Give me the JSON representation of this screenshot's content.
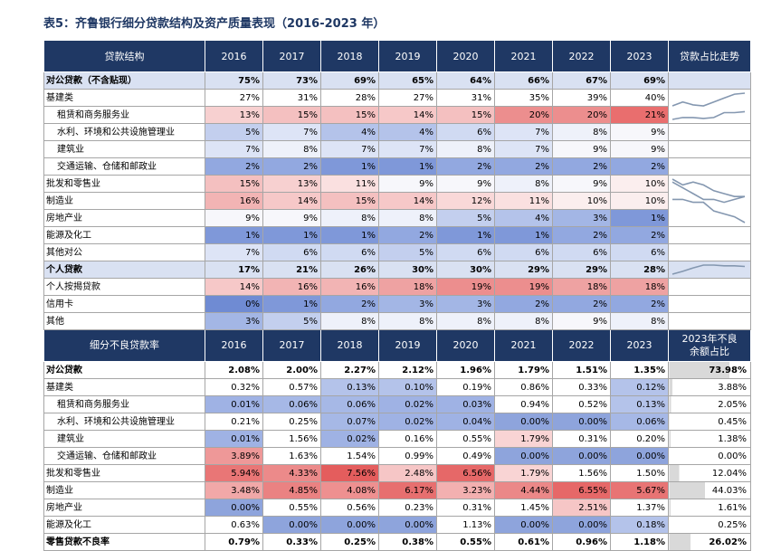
{
  "caption": "表5：齐鲁银行细分贷款结构及资产质量表现（2016-2023 年）",
  "section1": {
    "header_label": "贷款结构",
    "years": [
      "2016",
      "2017",
      "2018",
      "2019",
      "2020",
      "2021",
      "2022",
      "2023"
    ],
    "trend_label": "贷款占比走势",
    "rows": [
      {
        "label": "对公贷款（不含贴现）",
        "indent": false,
        "bold": true,
        "band": true,
        "values": [
          "75%",
          "73%",
          "69%",
          "65%",
          "64%",
          "66%",
          "67%",
          "69%"
        ],
        "colors": [
          null,
          null,
          null,
          null,
          null,
          null,
          null,
          null
        ]
      },
      {
        "label": "基建类",
        "indent": false,
        "bold": false,
        "values": [
          "27%",
          "31%",
          "28%",
          "27%",
          "31%",
          "35%",
          "39%",
          "40%"
        ],
        "colors": [
          null,
          null,
          null,
          null,
          null,
          null,
          null,
          null
        ]
      },
      {
        "label": "租赁和商务服务业",
        "indent": true,
        "bold": false,
        "values": [
          "13%",
          "15%",
          "15%",
          "14%",
          "15%",
          "20%",
          "20%",
          "21%"
        ],
        "colors": [
          "#f7d0d0",
          "#f4c0c0",
          "#f4c0c0",
          "#f6c8c8",
          "#f4c0c0",
          "#ec8e8e",
          "#ec8e8e",
          "#e96e6e"
        ]
      },
      {
        "label": "水利、环境和公共设施管理业",
        "indent": true,
        "bold": false,
        "values": [
          "5%",
          "7%",
          "4%",
          "4%",
          "6%",
          "7%",
          "8%",
          "9%"
        ],
        "colors": [
          "#c3cfee",
          "#dde4f6",
          "#b4c3ea",
          "#b4c3ea",
          "#d0daf2",
          "#dde4f6",
          "#eef1fa",
          "#f7f7fb"
        ]
      },
      {
        "label": "建筑业",
        "indent": true,
        "bold": false,
        "values": [
          "7%",
          "8%",
          "7%",
          "7%",
          "8%",
          "7%",
          "9%",
          "9%"
        ],
        "colors": [
          "#dde4f6",
          "#eef1fa",
          "#dde4f6",
          "#dde4f6",
          "#eef1fa",
          "#dde4f6",
          "#f7f7fb",
          "#f7f7fb"
        ]
      },
      {
        "label": "交通运输、仓储和邮政业",
        "indent": true,
        "bold": false,
        "values": [
          "2%",
          "2%",
          "1%",
          "1%",
          "2%",
          "2%",
          "2%",
          "2%"
        ],
        "colors": [
          "#92a8e0",
          "#92a8e0",
          "#7f98d9",
          "#7f98d9",
          "#92a8e0",
          "#92a8e0",
          "#92a8e0",
          "#92a8e0"
        ]
      },
      {
        "label": "批发和零售业",
        "indent": false,
        "bold": false,
        "values": [
          "15%",
          "13%",
          "11%",
          "9%",
          "9%",
          "8%",
          "9%",
          "10%"
        ],
        "colors": [
          "#f4c0c0",
          "#f7d0d0",
          "#fae0e0",
          "#f7f7fb",
          "#f7f7fb",
          "#eef1fa",
          "#f7f7fb",
          "#fbeeee"
        ]
      },
      {
        "label": "制造业",
        "indent": false,
        "bold": false,
        "values": [
          "16%",
          "14%",
          "15%",
          "14%",
          "12%",
          "11%",
          "10%",
          "10%"
        ],
        "colors": [
          "#f2b4b4",
          "#f6c8c8",
          "#f4c0c0",
          "#f6c8c8",
          "#f9d8d8",
          "#fae0e0",
          "#fbeeee",
          "#fbeeee"
        ]
      },
      {
        "label": "房地产业",
        "indent": false,
        "bold": false,
        "values": [
          "9%",
          "9%",
          "8%",
          "8%",
          "5%",
          "4%",
          "3%",
          "1%"
        ],
        "colors": [
          "#f7f7fb",
          "#f7f7fb",
          "#eef1fa",
          "#eef1fa",
          "#c3cfee",
          "#b4c3ea",
          "#a3b6e5",
          "#7f98d9"
        ]
      },
      {
        "label": "能源及化工",
        "indent": false,
        "bold": false,
        "values": [
          "1%",
          "1%",
          "1%",
          "2%",
          "1%",
          "1%",
          "2%",
          "2%"
        ],
        "colors": [
          "#7f98d9",
          "#7f98d9",
          "#7f98d9",
          "#92a8e0",
          "#7f98d9",
          "#7f98d9",
          "#92a8e0",
          "#92a8e0"
        ]
      },
      {
        "label": "其他对公",
        "indent": false,
        "bold": false,
        "values": [
          "7%",
          "6%",
          "6%",
          "5%",
          "6%",
          "6%",
          "6%",
          "6%"
        ],
        "colors": [
          "#dde4f6",
          "#d0daf2",
          "#d0daf2",
          "#c3cfee",
          "#d0daf2",
          "#d0daf2",
          "#d0daf2",
          "#d0daf2"
        ]
      },
      {
        "label": "个人贷款",
        "indent": false,
        "bold": true,
        "band": true,
        "values": [
          "17%",
          "21%",
          "26%",
          "30%",
          "30%",
          "29%",
          "29%",
          "28%"
        ],
        "colors": [
          null,
          null,
          null,
          null,
          null,
          null,
          null,
          null
        ]
      },
      {
        "label": "个人按揭贷款",
        "indent": false,
        "bold": false,
        "values": [
          "14%",
          "16%",
          "16%",
          "18%",
          "19%",
          "19%",
          "18%",
          "18%"
        ],
        "colors": [
          "#f6c8c8",
          "#f2b4b4",
          "#f2b4b4",
          "#eea2a2",
          "#ec8e8e",
          "#ec8e8e",
          "#eea2a2",
          "#eea2a2"
        ]
      },
      {
        "label": "信用卡",
        "indent": false,
        "bold": false,
        "values": [
          "0%",
          "1%",
          "2%",
          "3%",
          "3%",
          "2%",
          "2%",
          "2%"
        ],
        "colors": [
          "#6f8bd3",
          "#7f98d9",
          "#92a8e0",
          "#a3b6e5",
          "#a3b6e5",
          "#92a8e0",
          "#92a8e0",
          "#92a8e0"
        ]
      },
      {
        "label": "其他",
        "indent": false,
        "bold": false,
        "values": [
          "3%",
          "5%",
          "8%",
          "8%",
          "8%",
          "8%",
          "9%",
          "8%"
        ],
        "colors": [
          "#a3b6e5",
          "#c3cfee",
          "#eef1fa",
          "#eef1fa",
          "#eef1fa",
          "#eef1fa",
          "#f7f7fb",
          "#eef1fa"
        ]
      }
    ]
  },
  "section2": {
    "header_label": "细分不良贷款率",
    "years": [
      "2016",
      "2017",
      "2018",
      "2019",
      "2020",
      "2021",
      "2022",
      "2023"
    ],
    "share_label": "2023年不良余额占比",
    "share_label_line1": "2023年不良",
    "share_label_line2": "余额占比",
    "rows": [
      {
        "label": "对公贷款",
        "indent": false,
        "bold": true,
        "values": [
          "2.08%",
          "2.00%",
          "2.27%",
          "2.12%",
          "1.96%",
          "1.79%",
          "1.51%",
          "1.35%"
        ],
        "colors": [
          null,
          null,
          null,
          null,
          null,
          null,
          null,
          null
        ],
        "share": "73.98%",
        "share_fill": 0.74
      },
      {
        "label": "基建类",
        "indent": false,
        "bold": false,
        "values": [
          "0.32%",
          "0.57%",
          "0.13%",
          "0.10%",
          "0.19%",
          "0.86%",
          "0.33%",
          "0.12%"
        ],
        "colors": [
          null,
          null,
          "#b4c3ea",
          "#b4c3ea",
          null,
          null,
          null,
          "#b4c3ea"
        ],
        "share": "3.88%",
        "share_fill": 0.04
      },
      {
        "label": "租赁和商务服务业",
        "indent": true,
        "bold": false,
        "values": [
          "0.01%",
          "0.06%",
          "0.06%",
          "0.02%",
          "0.03%",
          "0.94%",
          "0.52%",
          "0.13%"
        ],
        "colors": [
          "#9fb2e4",
          "#a6b8e6",
          "#a6b8e6",
          "#9fb2e4",
          "#9fb2e4",
          null,
          null,
          "#b4c3ea"
        ],
        "share": "2.05%",
        "share_fill": 0.02
      },
      {
        "label": "水利、环境和公共设施管理业",
        "indent": true,
        "bold": false,
        "values": [
          "0.21%",
          "0.25%",
          "0.07%",
          "0.02%",
          "0.04%",
          "0.00%",
          "0.00%",
          "0.06%"
        ],
        "colors": [
          null,
          null,
          "#a6b8e6",
          "#9fb2e4",
          "#9fb2e4",
          "#8ea4dc",
          "#8ea4dc",
          "#a6b8e6"
        ],
        "share": "0.45%",
        "share_fill": 0.005
      },
      {
        "label": "建筑业",
        "indent": true,
        "bold": false,
        "values": [
          "0.01%",
          "1.56%",
          "0.02%",
          "0.16%",
          "0.55%",
          "1.79%",
          "0.31%",
          "0.20%"
        ],
        "colors": [
          "#9fb2e4",
          null,
          "#9fb2e4",
          null,
          null,
          "#f9d4d4",
          null,
          null
        ],
        "share": "1.38%",
        "share_fill": 0.014
      },
      {
        "label": "交通运输、仓储和邮政业",
        "indent": true,
        "bold": false,
        "values": [
          "3.89%",
          "1.63%",
          "1.54%",
          "0.99%",
          "0.49%",
          "0.00%",
          "0.00%",
          "0.00%"
        ],
        "colors": [
          "#ee9898",
          null,
          null,
          null,
          null,
          "#8ea4dc",
          "#8ea4dc",
          "#8ea4dc"
        ],
        "share": "0.00%",
        "share_fill": 0.0
      },
      {
        "label": "批发和零售业",
        "indent": false,
        "bold": false,
        "values": [
          "5.94%",
          "4.33%",
          "7.56%",
          "2.48%",
          "6.56%",
          "1.79%",
          "1.56%",
          "1.50%"
        ],
        "colors": [
          "#e97676",
          "#ec8a8a",
          "#e45d5d",
          "#f6c6c6",
          "#e66868",
          "#f9d4d4",
          null,
          null
        ],
        "share": "12.04%",
        "share_fill": 0.12
      },
      {
        "label": "制造业",
        "indent": false,
        "bold": false,
        "values": [
          "3.48%",
          "4.85%",
          "4.08%",
          "6.17%",
          "3.23%",
          "4.44%",
          "6.55%",
          "5.67%"
        ],
        "colors": [
          "#f1a8a8",
          "#ea8282",
          "#ee9090",
          "#e76f6f",
          "#f3b0b0",
          "#eb8888",
          "#e66868",
          "#e87474"
        ],
        "share": "44.03%",
        "share_fill": 0.44
      },
      {
        "label": "房地产业",
        "indent": false,
        "bold": false,
        "values": [
          "0.00%",
          "0.55%",
          "0.56%",
          "0.23%",
          "0.31%",
          "1.45%",
          "2.51%",
          "1.37%"
        ],
        "colors": [
          "#8ea4dc",
          null,
          null,
          null,
          null,
          null,
          "#f6c6c6",
          null
        ],
        "share": "1.61%",
        "share_fill": 0.016
      },
      {
        "label": "能源及化工",
        "indent": false,
        "bold": false,
        "values": [
          "0.63%",
          "0.00%",
          "0.00%",
          "0.00%",
          "1.13%",
          "0.00%",
          "0.00%",
          "0.18%"
        ],
        "colors": [
          null,
          "#8ea4dc",
          "#8ea4dc",
          "#8ea4dc",
          null,
          "#8ea4dc",
          "#8ea4dc",
          "#b4c3ea"
        ],
        "share": "0.25%",
        "share_fill": 0.0025
      },
      {
        "label": "零售贷款不良率",
        "indent": false,
        "bold": true,
        "values": [
          "0.79%",
          "0.33%",
          "0.25%",
          "0.38%",
          "0.55%",
          "0.61%",
          "0.96%",
          "1.18%"
        ],
        "colors": [
          null,
          null,
          null,
          null,
          null,
          null,
          null,
          null
        ],
        "share": "26.02%",
        "share_fill": 0.26
      }
    ]
  },
  "colors": {
    "header_bg": "#1f3864",
    "band_bg": "#d9e1f2",
    "spark_line": "#8497b0",
    "share_bar": "#d9d9d9"
  },
  "sparklines": [
    {
      "rows": [
        1,
        2
      ],
      "series": [
        [
          27,
          31,
          28,
          27,
          31,
          35,
          39,
          40
        ],
        [
          13,
          15,
          15,
          14,
          15,
          20,
          20,
          21
        ]
      ]
    },
    {
      "rows": [
        6,
        7,
        8
      ],
      "series": [
        [
          15,
          13,
          11,
          9,
          9,
          8,
          9,
          10
        ],
        [
          16,
          14,
          15,
          14,
          12,
          11,
          10,
          10
        ],
        [
          9,
          9,
          8,
          8,
          5,
          4,
          3,
          1
        ]
      ]
    },
    {
      "rows": [
        11
      ],
      "series": [
        [
          17,
          21,
          26,
          30,
          30,
          29,
          29,
          28
        ]
      ]
    }
  ]
}
